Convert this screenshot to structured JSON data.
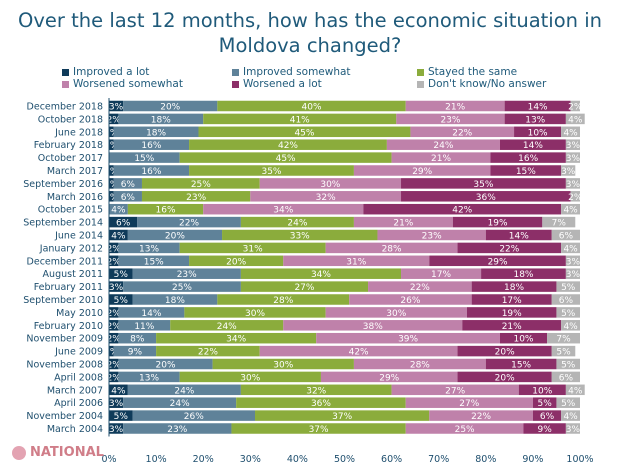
{
  "chart_data": {
    "type": "bar",
    "orientation": "horizontal",
    "stacked": true,
    "title": "Over the last 12 months, how has the economic situation in Moldova changed?",
    "categories": [
      "December 2018",
      "October 2018",
      "June 2018",
      "February 2018",
      "October 2017",
      "March 2017",
      "September 2016",
      "March 2016",
      "October 2015",
      "September 2014",
      "June 2014",
      "January 2012",
      "December 2011",
      "August 2011",
      "February 2011",
      "September 2010",
      "May 2010",
      "February 2010",
      "November 2009",
      "June 2009",
      "November 2008",
      "April 2008",
      "March 2007",
      "April 2006",
      "November 2004",
      "March 2004"
    ],
    "series": [
      {
        "name": "Improved a lot",
        "color": "#0f3b5a",
        "values": [
          3,
          2,
          1,
          1,
          0,
          1,
          1,
          1,
          0,
          6,
          4,
          2,
          2,
          5,
          3,
          5,
          2,
          2,
          2,
          1,
          2,
          2,
          4,
          3,
          5,
          3
        ]
      },
      {
        "name": "Improved somewhat",
        "color": "#5f8299",
        "values": [
          20,
          18,
          18,
          16,
          15,
          16,
          6,
          6,
          4,
          22,
          20,
          13,
          15,
          23,
          25,
          18,
          14,
          11,
          8,
          9,
          20,
          13,
          24,
          24,
          26,
          23
        ]
      },
      {
        "name": "Stayed the same",
        "color": "#8bac3c",
        "values": [
          40,
          41,
          45,
          42,
          45,
          35,
          25,
          23,
          16,
          24,
          33,
          31,
          20,
          34,
          27,
          28,
          30,
          24,
          34,
          22,
          30,
          30,
          32,
          36,
          37,
          37
        ]
      },
      {
        "name": "Worsened somewhat",
        "color": "#bf81aa",
        "values": [
          21,
          23,
          22,
          24,
          21,
          29,
          30,
          32,
          34,
          21,
          23,
          28,
          31,
          17,
          22,
          26,
          30,
          38,
          39,
          42,
          28,
          29,
          27,
          27,
          22,
          25
        ]
      },
      {
        "name": "Worsened a lot",
        "color": "#8c2f68",
        "values": [
          14,
          13,
          10,
          14,
          16,
          15,
          35,
          36,
          42,
          19,
          14,
          22,
          29,
          18,
          18,
          17,
          19,
          21,
          10,
          20,
          15,
          20,
          10,
          5,
          6,
          9
        ]
      },
      {
        "name": "Don't know/No answer",
        "color": "#b5b5b5",
        "values": [
          2,
          4,
          4,
          3,
          3,
          3,
          3,
          2,
          4,
          7,
          6,
          4,
          3,
          3,
          5,
          6,
          5,
          4,
          7,
          5,
          5,
          6,
          4,
          5,
          4,
          3
        ]
      }
    ],
    "xlim": [
      0,
      100
    ],
    "xticks": [
      "0%",
      "10%",
      "20%",
      "30%",
      "40%",
      "50%",
      "60%",
      "70%",
      "80%",
      "90%",
      "100%"
    ],
    "legend": "top"
  },
  "logo": "NATIONAL"
}
